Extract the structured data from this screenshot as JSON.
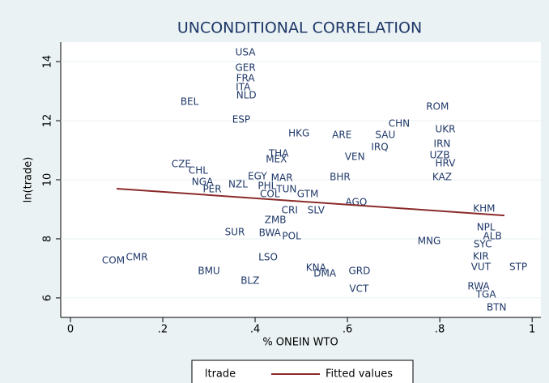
{
  "chart_data": {
    "type": "scatter",
    "title": "UNCONDITIONAL CORRELATION",
    "x_label": "% ONEIN WTO",
    "y_label": "ln(trade)",
    "xlim": [
      -0.021,
      1.019
    ],
    "ylim": [
      5.34,
      14.66
    ],
    "xticks": [
      0,
      {
        "value": 0.2,
        "label": ".2"
      },
      {
        "value": 0.4,
        "label": ".4"
      },
      {
        "value": 0.6,
        "label": ".6"
      },
      {
        "value": 0.8,
        "label": ".8"
      },
      1
    ],
    "yticks": [
      6,
      8,
      10,
      12,
      14
    ],
    "legend": "bottom",
    "series": [
      {
        "name": "ltrade",
        "color": "#1e3768",
        "labels": [
          "USA",
          "GER",
          "FRA",
          "ITA",
          "NLD",
          "BEL",
          "ROM",
          "ESP",
          "CHN",
          "UKR",
          "HKG",
          "ARE",
          "SAU",
          "IRN",
          "IRQ",
          "THA",
          "VEN",
          "UZB",
          "MEX",
          "HRV",
          "CZE",
          "CHL",
          "EGY",
          "MAR",
          "BHR",
          "KAZ",
          "NGA",
          "NZL",
          "PHL",
          "PER",
          "TUN",
          "COL",
          "GTM",
          "AGO",
          "KHM",
          "CRI",
          "SLV",
          "ZMB",
          "NPL",
          "SUR",
          "BWA",
          "ALB",
          "POL",
          "MNG",
          "SYC",
          "KIR",
          "LSO",
          "COM",
          "CMR",
          "VUT",
          "KNA",
          "BMU",
          "GRD",
          "STP",
          "DMA",
          "BLZ",
          "RWA",
          "VCT",
          "TGA",
          "BTN"
        ],
        "x": [
          0.379,
          0.379,
          0.379,
          0.374,
          0.381,
          0.258,
          0.795,
          0.37,
          0.712,
          0.812,
          0.495,
          0.588,
          0.682,
          0.805,
          0.67,
          0.451,
          0.616,
          0.8,
          0.446,
          0.812,
          0.24,
          0.277,
          0.405,
          0.458,
          0.584,
          0.805,
          0.286,
          0.363,
          0.426,
          0.307,
          0.468,
          0.432,
          0.514,
          0.619,
          0.896,
          0.475,
          0.532,
          0.444,
          0.9,
          0.356,
          0.432,
          0.914,
          0.479,
          0.777,
          0.893,
          0.889,
          0.428,
          0.093,
          0.144,
          0.889,
          0.532,
          0.3,
          0.626,
          0.97,
          0.551,
          0.389,
          0.884,
          0.625,
          0.9,
          0.923
        ],
        "values": [
          14.3,
          13.78,
          13.42,
          13.12,
          12.85,
          12.63,
          12.47,
          12.03,
          11.89,
          11.7,
          11.56,
          11.51,
          11.51,
          11.21,
          11.1,
          10.88,
          10.77,
          10.82,
          10.68,
          10.55,
          10.52,
          10.3,
          10.11,
          10.05,
          10.08,
          10.08,
          9.92,
          9.84,
          9.78,
          9.67,
          9.67,
          9.51,
          9.51,
          9.23,
          9.01,
          8.96,
          8.96,
          8.63,
          8.38,
          8.22,
          8.19,
          8.08,
          8.08,
          7.92,
          7.81,
          7.4,
          7.37,
          7.26,
          7.37,
          7.04,
          7.01,
          6.9,
          6.9,
          7.04,
          6.82,
          6.58,
          6.38,
          6.3,
          6.11,
          5.67
        ]
      },
      {
        "name": "Fitted values",
        "color": "#8b2a2a",
        "x": [
          0.1,
          0.94
        ],
        "values": [
          9.7,
          8.79
        ]
      }
    ]
  }
}
